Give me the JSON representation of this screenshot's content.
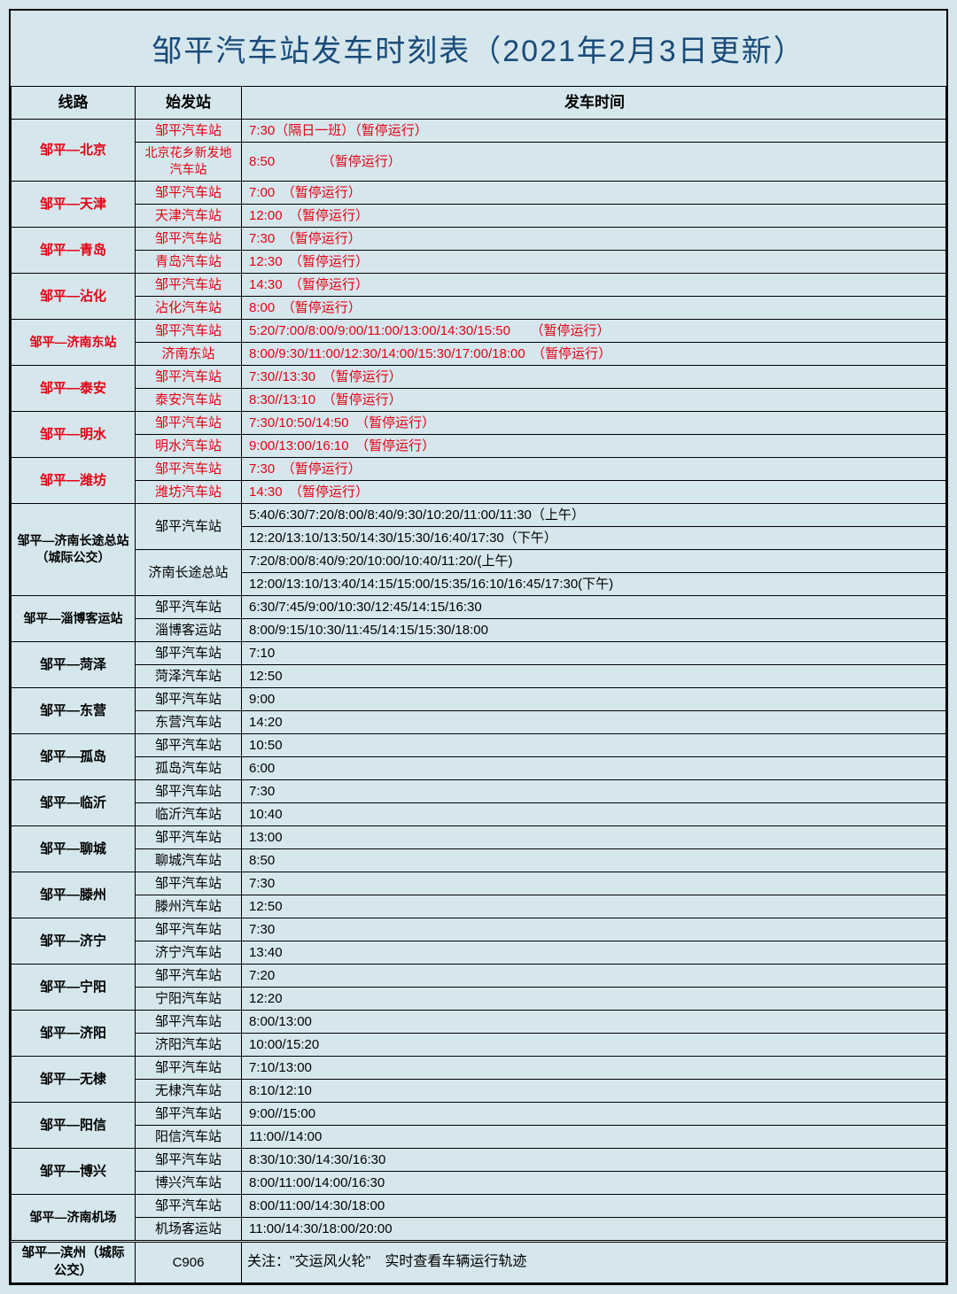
{
  "title": "邹平汽车站发车时刻表（2021年2月3日更新）",
  "headers": {
    "route": "线路",
    "station": "始发站",
    "time": "发车时间"
  },
  "colors": {
    "suspended": "#e60012",
    "normal": "#000000",
    "title": "#1a4b7a",
    "background": "#d5e7ed"
  },
  "rows": [
    {
      "route": "邹平—北京",
      "red": true,
      "stations": [
        {
          "name": "邹平汽车站",
          "time": "7:30（隔日一班）（暂停运行）"
        },
        {
          "name": "北京花乡新发地汽车站",
          "time": "8:50　　　　（暂停运行）",
          "smallStation": true
        }
      ]
    },
    {
      "route": "邹平—天津",
      "red": true,
      "stations": [
        {
          "name": "邹平汽车站",
          "time": "7:00　（暂停运行）"
        },
        {
          "name": "天津汽车站",
          "time": "12:00　（暂停运行）"
        }
      ]
    },
    {
      "route": "邹平—青岛",
      "red": true,
      "stations": [
        {
          "name": "邹平汽车站",
          "time": "7:30　（暂停运行）"
        },
        {
          "name": "青岛汽车站",
          "time": "12:30　（暂停运行）"
        }
      ]
    },
    {
      "route": "邹平—沾化",
      "red": true,
      "stations": [
        {
          "name": "邹平汽车站",
          "time": "14:30　（暂停运行）"
        },
        {
          "name": "沾化汽车站",
          "time": "8:00　（暂停运行）"
        }
      ]
    },
    {
      "route": "邹平—济南东站",
      "red": true,
      "smallRoute": true,
      "stations": [
        {
          "name": "邹平汽车站",
          "time": "5:20/7:00/8:00/9:00/11:00/13:00/14:30/15:50　　（暂停运行）"
        },
        {
          "name": "济南东站",
          "time": "8:00/9:30/11:00/12:30/14:00/15:30/17:00/18:00　（暂停运行）"
        }
      ]
    },
    {
      "route": "邹平—泰安",
      "red": true,
      "stations": [
        {
          "name": "邹平汽车站",
          "time": "7:30//13:30　（暂停运行）"
        },
        {
          "name": "泰安汽车站",
          "time": "8:30//13:10　（暂停运行）"
        }
      ]
    },
    {
      "route": "邹平—明水",
      "red": true,
      "stations": [
        {
          "name": "邹平汽车站",
          "time": "7:30/10:50/14:50　（暂停运行）"
        },
        {
          "name": "明水汽车站",
          "time": "9:00/13:00/16:10　（暂停运行）"
        }
      ]
    },
    {
      "route": "邹平—潍坊",
      "red": true,
      "stations": [
        {
          "name": "邹平汽车站",
          "time": "7:30　（暂停运行）"
        },
        {
          "name": "潍坊汽车站",
          "time": "14:30　（暂停运行）"
        }
      ]
    },
    {
      "route": "邹平—济南长途总站（城际公交）",
      "red": false,
      "smallRoute": true,
      "rowspan4": true,
      "stations": [
        {
          "name": "邹平汽车站",
          "time": "5:40/6:30/7:20/8:00/8:40/9:30/10:20/11:00/11:30（上午）",
          "rowspan": 2
        },
        {
          "time": "12:20/13:10/13:50/14:30/15:30/16:40/17:30（下午）"
        },
        {
          "name": "济南长途总站",
          "time": "7:20/8:00/8:40/9:20/10:00/10:40/11:20/(上午)",
          "rowspan": 2
        },
        {
          "time": "12:00/13:10/13:40/14:15/15:00/15:35/16:10/16:45/17:30(下午)"
        }
      ]
    },
    {
      "route": "邹平—淄博客运站",
      "red": false,
      "smallRoute": true,
      "stations": [
        {
          "name": "邹平汽车站",
          "time": "6:30/7:45/9:00/10:30/12:45/14:15/16:30"
        },
        {
          "name": "淄博客运站",
          "time": "8:00/9:15/10:30/11:45/14:15/15:30/18:00"
        }
      ]
    },
    {
      "route": "邹平—菏泽",
      "red": false,
      "stations": [
        {
          "name": "邹平汽车站",
          "time": "7:10"
        },
        {
          "name": "菏泽汽车站",
          "time": "12:50"
        }
      ]
    },
    {
      "route": "邹平—东营",
      "red": false,
      "stations": [
        {
          "name": "邹平汽车站",
          "time": "9:00"
        },
        {
          "name": "东营汽车站",
          "time": "14:20"
        }
      ]
    },
    {
      "route": "邹平—孤岛",
      "red": false,
      "stations": [
        {
          "name": "邹平汽车站",
          "time": "10:50"
        },
        {
          "name": "孤岛汽车站",
          "time": "6:00"
        }
      ]
    },
    {
      "route": "邹平—临沂",
      "red": false,
      "stations": [
        {
          "name": "邹平汽车站",
          "time": "7:30"
        },
        {
          "name": "临沂汽车站",
          "time": "10:40"
        }
      ]
    },
    {
      "route": "邹平—聊城",
      "red": false,
      "stations": [
        {
          "name": "邹平汽车站",
          "time": "13:00"
        },
        {
          "name": "聊城汽车站",
          "time": "8:50"
        }
      ]
    },
    {
      "route": "邹平—滕州",
      "red": false,
      "stations": [
        {
          "name": "邹平汽车站",
          "time": "7:30"
        },
        {
          "name": "滕州汽车站",
          "time": "12:50"
        }
      ]
    },
    {
      "route": "邹平—济宁",
      "red": false,
      "stations": [
        {
          "name": "邹平汽车站",
          "time": "7:30"
        },
        {
          "name": "济宁汽车站",
          "time": "13:40"
        }
      ]
    },
    {
      "route": "邹平—宁阳",
      "red": false,
      "stations": [
        {
          "name": "邹平汽车站",
          "time": "7:20"
        },
        {
          "name": "宁阳汽车站",
          "time": "12:20"
        }
      ]
    },
    {
      "route": "邹平—济阳",
      "red": false,
      "stations": [
        {
          "name": "邹平汽车站",
          "time": "8:00/13:00"
        },
        {
          "name": "济阳汽车站",
          "time": "10:00/15:20"
        }
      ]
    },
    {
      "route": "邹平—无棣",
      "red": false,
      "stations": [
        {
          "name": "邹平汽车站",
          "time": "7:10/13:00"
        },
        {
          "name": "无棣汽车站",
          "time": "8:10/12:10"
        }
      ]
    },
    {
      "route": "邹平—阳信",
      "red": false,
      "stations": [
        {
          "name": "邹平汽车站",
          "time": "9:00//15:00"
        },
        {
          "name": "阳信汽车站",
          "time": "11:00//14:00"
        }
      ]
    },
    {
      "route": "邹平—博兴",
      "red": false,
      "stations": [
        {
          "name": "邹平汽车站",
          "time": "8:30/10:30/14:30/16:30"
        },
        {
          "name": "博兴汽车站",
          "time": "8:00/11:00/14:00/16:30"
        }
      ]
    },
    {
      "route": "邹平—济南机场",
      "red": false,
      "smallRoute": true,
      "stations": [
        {
          "name": "邹平汽车站",
          "time": "8:00/11:00/14:30/18:00"
        },
        {
          "name": "机场客运站",
          "time": "11:00/14:30/18:00/20:00"
        }
      ]
    }
  ],
  "footer": {
    "route": "邹平—滨州（城际公交）",
    "code": "C906",
    "text": "关注：\"交运风火轮\"　实时查看车辆运行轨迹"
  }
}
